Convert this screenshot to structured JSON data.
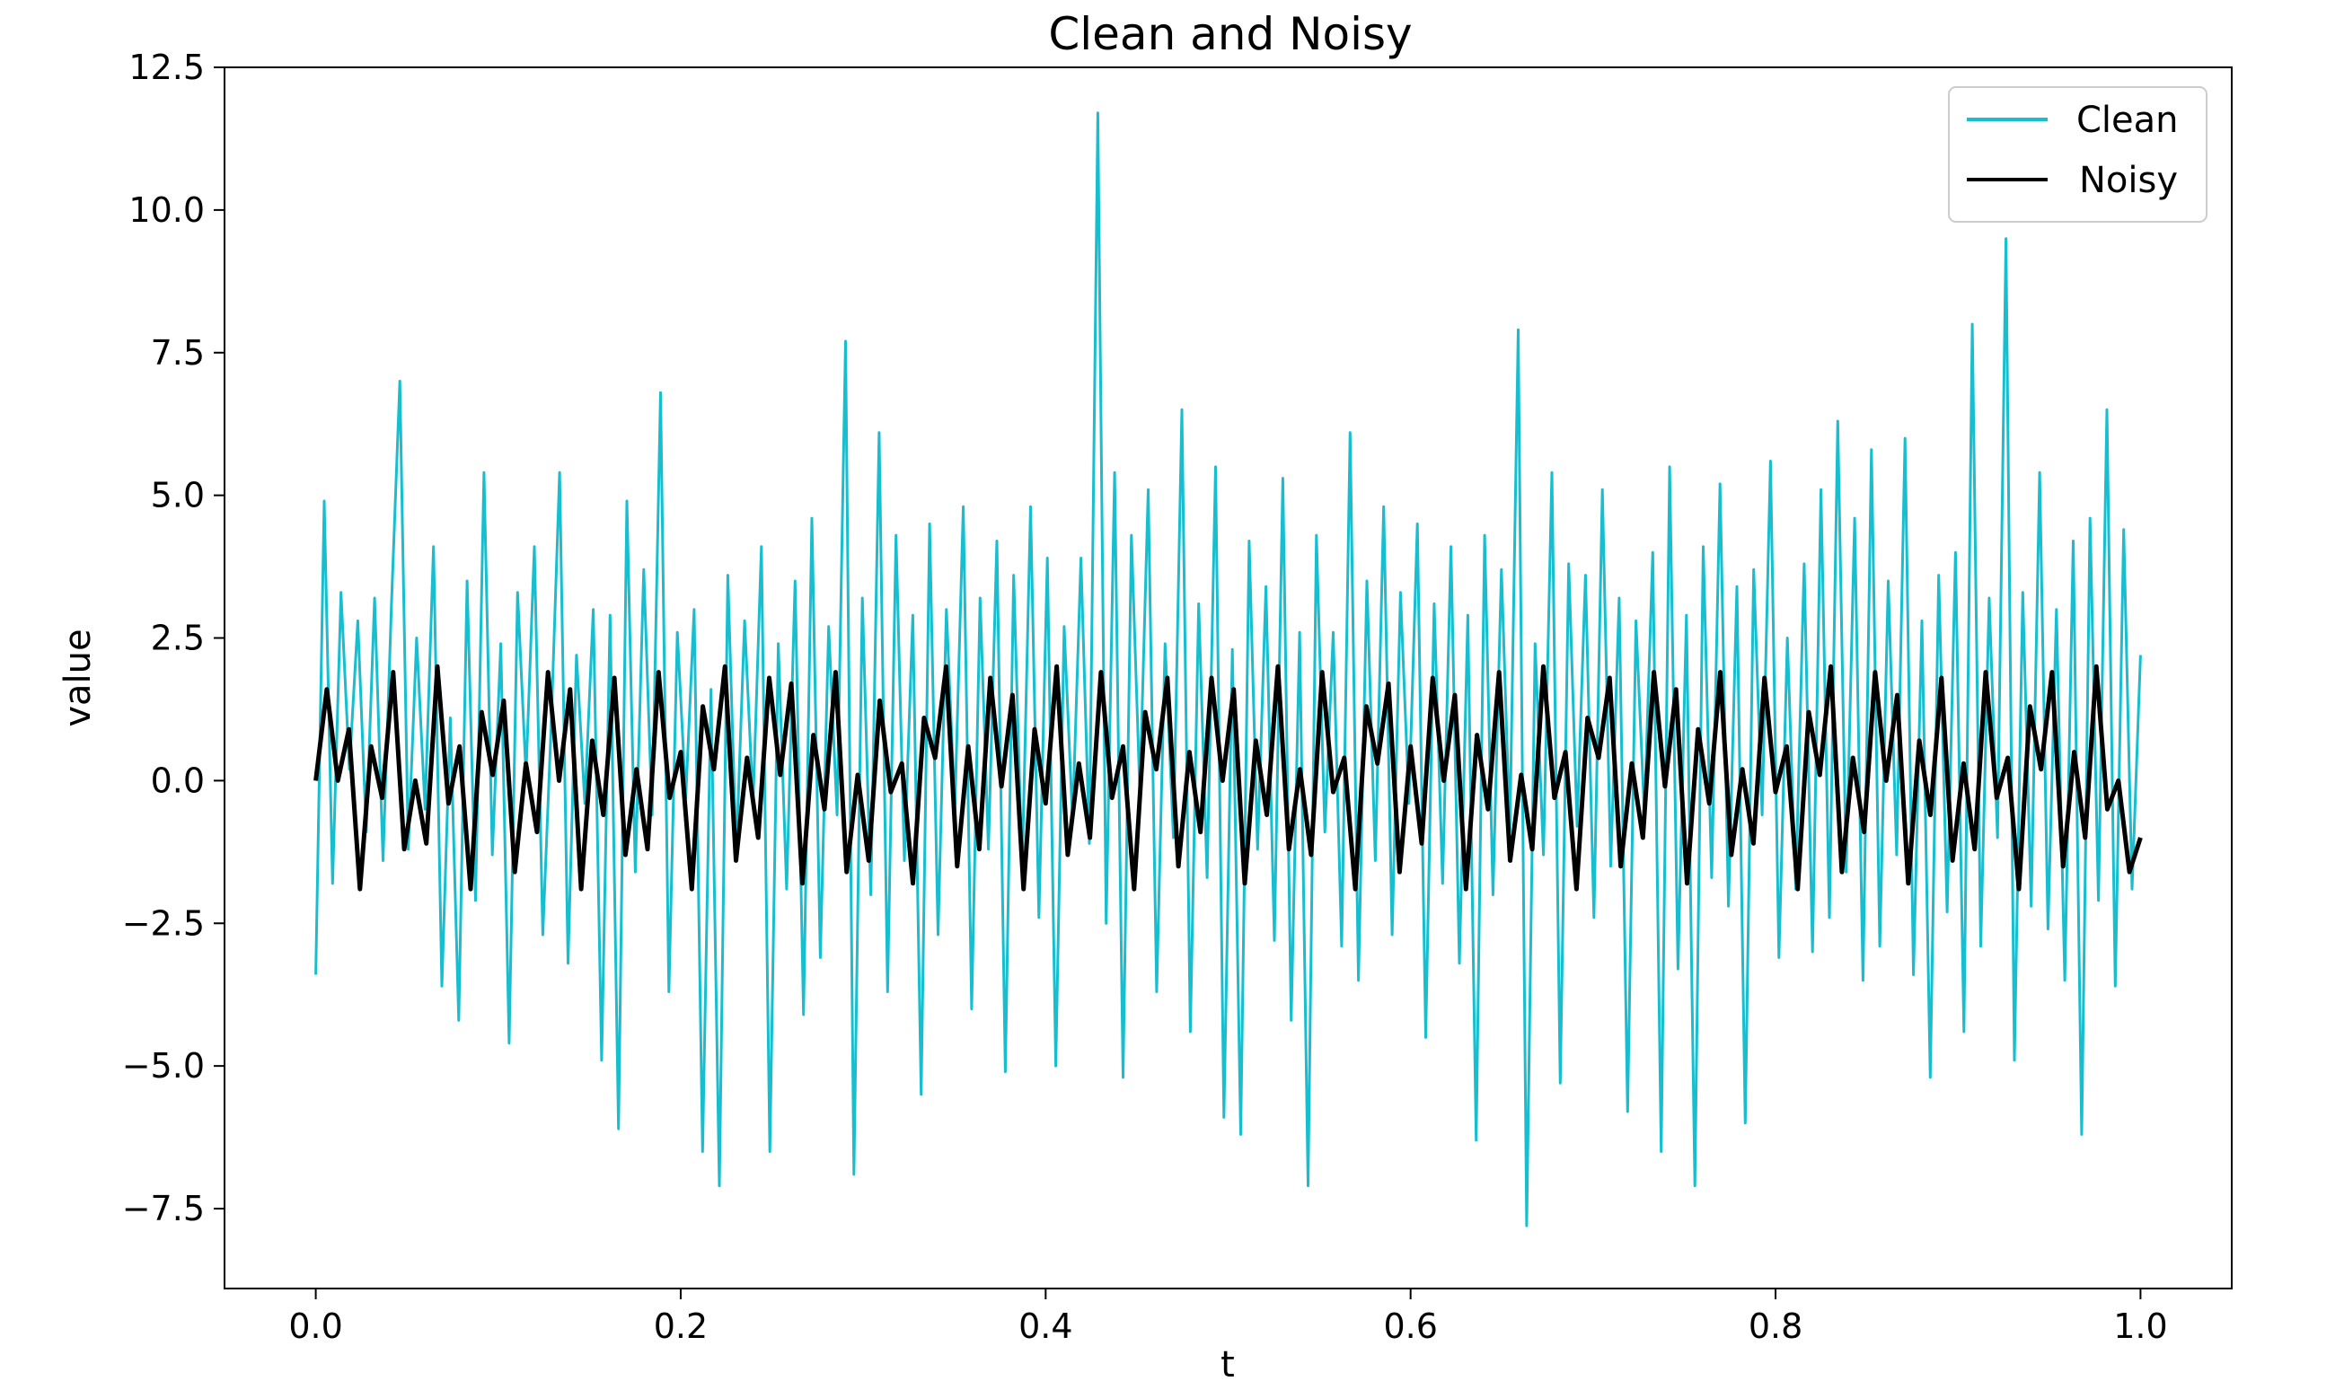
{
  "chart_data": {
    "type": "line",
    "title": "Clean and Noisy",
    "xlabel": "t",
    "ylabel": "value",
    "xlim": [
      -0.05,
      1.05
    ],
    "ylim": [
      -8.9,
      12.5
    ],
    "x_ticks": [
      "0.0",
      "0.2",
      "0.4",
      "0.6",
      "0.8",
      "1.0"
    ],
    "y_ticks": [
      "−7.5",
      "−5.0",
      "−2.5",
      "0.0",
      "2.5",
      "5.0",
      "7.5",
      "10.0",
      "12.5"
    ],
    "x_tick_values": [
      0.0,
      0.2,
      0.4,
      0.6,
      0.8,
      1.0
    ],
    "y_tick_values": [
      -7.5,
      -5.0,
      -2.5,
      0.0,
      2.5,
      5.0,
      7.5,
      10.0,
      12.5
    ],
    "grid": false,
    "legend_position": "top-right",
    "series": [
      {
        "name": "Clean",
        "color": "#17becf",
        "x_range": [
          0.0,
          1.0
        ],
        "values": [
          -3.4,
          4.9,
          -1.8,
          3.3,
          0.2,
          2.8,
          -0.9,
          3.2,
          -1.4,
          3.1,
          7.0,
          -1.2,
          2.5,
          -0.5,
          4.1,
          -3.6,
          1.1,
          -4.2,
          3.5,
          -2.1,
          5.4,
          -1.3,
          2.4,
          -4.6,
          3.3,
          0.1,
          4.1,
          -2.7,
          1.0,
          5.4,
          -3.2,
          2.2,
          -0.4,
          3.0,
          -4.9,
          2.9,
          -6.1,
          4.9,
          -1.6,
          3.7,
          -0.6,
          6.8,
          -3.7,
          2.6,
          -0.3,
          3.0,
          -6.5,
          1.6,
          -7.1,
          3.6,
          -1.3,
          2.8,
          -0.4,
          4.1,
          -6.5,
          2.4,
          -1.9,
          3.5,
          -4.1,
          4.6,
          -3.1,
          2.7,
          -0.6,
          7.7,
          -6.9,
          3.2,
          -2.0,
          6.1,
          -3.7,
          4.3,
          -1.4,
          2.9,
          -5.5,
          4.5,
          -2.7,
          3.0,
          -0.5,
          4.8,
          -4.0,
          3.2,
          -1.2,
          4.2,
          -5.1,
          3.6,
          -1.6,
          4.8,
          -2.4,
          3.9,
          -5.0,
          2.7,
          -0.7,
          3.9,
          -1.1,
          11.7,
          -2.5,
          5.4,
          -5.2,
          4.3,
          -0.2,
          5.1,
          -3.7,
          2.4,
          -1.0,
          6.5,
          -4.4,
          3.1,
          -1.7,
          5.5,
          -5.9,
          2.3,
          -6.2,
          4.2,
          -1.2,
          3.4,
          -2.8,
          5.3,
          -4.2,
          2.6,
          -7.1,
          4.3,
          -0.9,
          2.6,
          -2.9,
          6.1,
          -3.5,
          3.5,
          -1.4,
          4.8,
          -2.7,
          3.3,
          -0.4,
          4.5,
          -4.5,
          3.1,
          -1.8,
          4.1,
          -3.2,
          2.9,
          -6.3,
          4.3,
          -2.0,
          3.7,
          -0.9,
          7.9,
          -7.8,
          2.4,
          -1.3,
          5.4,
          -5.3,
          3.8,
          -0.8,
          3.6,
          -2.4,
          5.1,
          -1.5,
          3.2,
          -5.8,
          2.8,
          -0.6,
          4.0,
          -6.5,
          5.5,
          -3.3,
          2.9,
          -7.1,
          4.1,
          -1.7,
          5.2,
          -2.2,
          3.4,
          -6.0,
          3.7,
          -0.6,
          5.6,
          -3.1,
          2.5,
          -1.9,
          3.8,
          -3.0,
          5.1,
          -2.4,
          6.3,
          -1.6,
          4.6,
          -3.5,
          5.8,
          -2.9,
          3.5,
          -1.3,
          6.0,
          -3.4,
          2.8,
          -5.2,
          3.6,
          -2.3,
          4.0,
          -4.4,
          8.0,
          -2.9,
          3.2,
          -1.0,
          9.5,
          -4.9,
          3.3,
          -2.2,
          5.4,
          -2.6,
          3.0,
          -3.5,
          4.2,
          -6.2,
          4.6,
          -2.1,
          6.5,
          -3.6,
          4.4,
          -1.9,
          2.2
        ]
      },
      {
        "name": "Noisy",
        "color": "#000000",
        "x_range": [
          0.0,
          1.0
        ],
        "values": [
          0.0,
          1.6,
          0.0,
          0.9,
          -1.9,
          0.6,
          -0.3,
          1.9,
          -1.2,
          0.0,
          -1.1,
          2.0,
          -0.4,
          0.6,
          -1.9,
          1.2,
          0.1,
          1.4,
          -1.6,
          0.3,
          -0.9,
          1.9,
          0.0,
          1.6,
          -1.9,
          0.7,
          -0.6,
          1.8,
          -1.3,
          0.2,
          -1.2,
          1.9,
          -0.3,
          0.5,
          -1.9,
          1.3,
          0.2,
          2.0,
          -1.4,
          0.4,
          -1.0,
          1.8,
          0.1,
          1.7,
          -1.8,
          0.8,
          -0.5,
          1.9,
          -1.6,
          0.1,
          -1.4,
          1.4,
          -0.2,
          0.3,
          -1.8,
          1.1,
          0.4,
          2.0,
          -1.5,
          0.6,
          -1.2,
          1.8,
          -0.1,
          1.5,
          -1.9,
          0.9,
          -0.4,
          2.0,
          -1.3,
          0.3,
          -1.0,
          1.9,
          -0.3,
          0.6,
          -1.9,
          1.2,
          0.2,
          1.8,
          -1.5,
          0.5,
          -0.9,
          1.8,
          0.0,
          1.6,
          -1.8,
          0.7,
          -0.6,
          2.0,
          -1.2,
          0.2,
          -1.3,
          1.9,
          -0.2,
          0.4,
          -1.9,
          1.3,
          0.3,
          1.7,
          -1.6,
          0.6,
          -1.1,
          1.8,
          0.0,
          1.5,
          -1.9,
          0.8,
          -0.5,
          1.9,
          -1.4,
          0.1,
          -1.2,
          2.0,
          -0.3,
          0.5,
          -1.9,
          1.1,
          0.4,
          1.8,
          -1.5,
          0.3,
          -1.0,
          1.9,
          -0.1,
          1.6,
          -1.8,
          0.9,
          -0.4,
          1.9,
          -1.3,
          0.2,
          -1.1,
          1.8,
          -0.2,
          0.6,
          -1.9,
          1.2,
          0.1,
          2.0,
          -1.6,
          0.4,
          -0.9,
          1.9,
          0.0,
          1.5,
          -1.8,
          0.7,
          -0.6,
          1.8,
          -1.4,
          0.3,
          -1.2,
          1.9,
          -0.3,
          0.4,
          -1.9,
          1.3,
          0.2,
          1.9,
          -1.5,
          0.5,
          -1.0,
          2.0,
          -0.5,
          0.0,
          -1.6,
          -1.0
        ]
      }
    ]
  }
}
